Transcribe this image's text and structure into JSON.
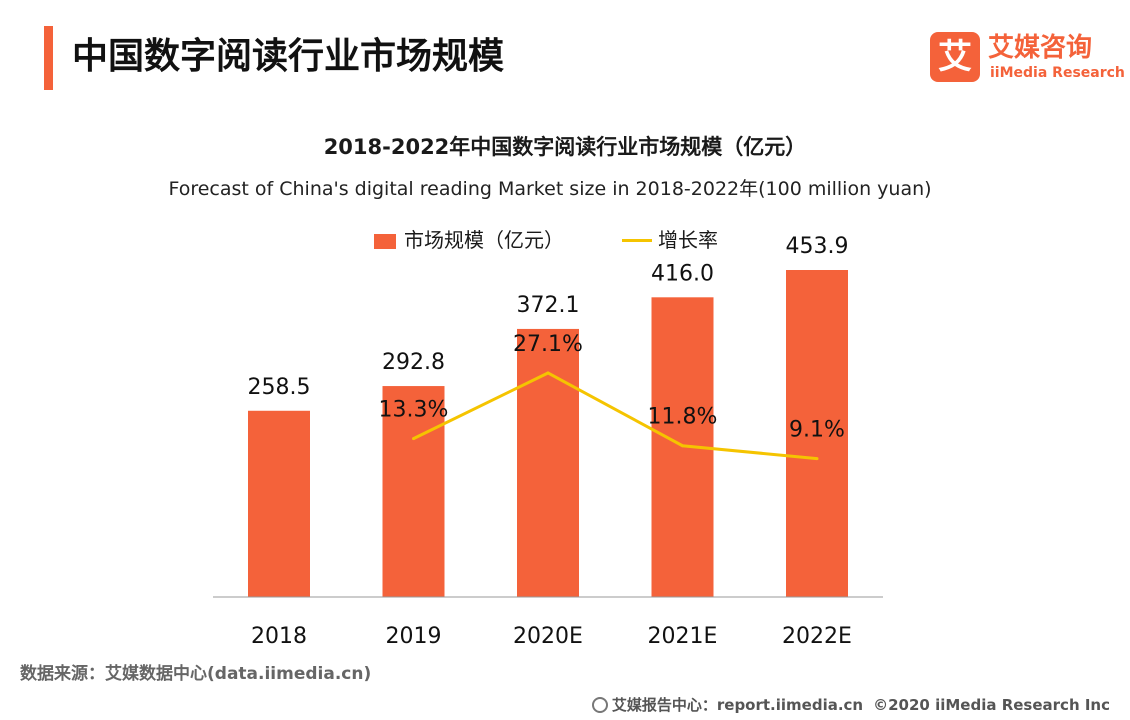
{
  "page": {
    "title": "中国数字阅读行业市场规模"
  },
  "logo": {
    "name": "艾媒咨询",
    "sub": "iiMedia Research",
    "mark": "艾"
  },
  "chart_data": {
    "type": "bar",
    "title": "2018-2022年中国数字阅读行业市场规模（亿元）",
    "subtitle": "Forecast of China's digital reading  Market size in 2018-2022年(100 million yuan)",
    "categories": [
      "2018",
      "2019",
      "2020E",
      "2021E",
      "2022E"
    ],
    "series": [
      {
        "name": "市场规模（亿元）",
        "type": "bar",
        "values": [
          258.5,
          292.8,
          372.1,
          416.0,
          453.9
        ],
        "labels": [
          "258.5",
          "292.8",
          "372.1",
          "416.0",
          "453.9"
        ]
      },
      {
        "name": "增长率",
        "type": "line",
        "values": [
          null,
          13.3,
          27.1,
          11.8,
          9.1
        ],
        "labels": [
          "",
          "13.3%",
          "27.1%",
          "11.8%",
          "9.1%"
        ]
      }
    ],
    "bar_ylim": [
      0,
      500
    ],
    "line_ylim": [
      -20,
      35
    ],
    "legend_position": "top-center",
    "grid": false
  },
  "colors": {
    "bar": "#f4623a",
    "line": "#f5c400",
    "accent": "#f4623a"
  },
  "footer": {
    "source": "数据来源：艾媒数据中心(data.iimedia.cn)",
    "report": "艾媒报告中心：report.iimedia.cn",
    "copyright": "©2020  iiMedia Research  Inc"
  }
}
